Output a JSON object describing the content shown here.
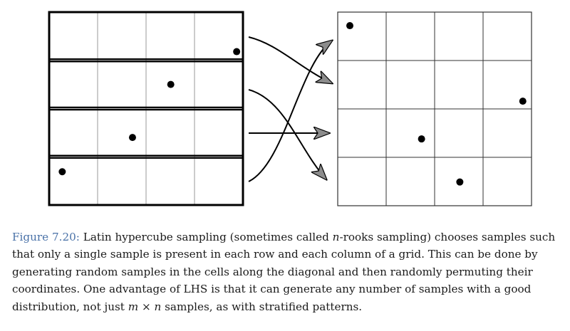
{
  "caption": {
    "label": "Figure 7.20:",
    "part1": " Latin hypercube sampling (sometimes called ",
    "math_n": "n",
    "part2": "-rooks sampling) chooses samples such that only a single sample is present in each row and each column of a grid. This can be done by generating random samples in the cells along the diagonal and then randomly permuting their coordinates. One advantage of LHS is that it can generate any number of samples with a good distribution, not just ",
    "math_m": "m",
    "times": " × ",
    "math_n2": "n",
    "part3": " samples, as with stratified patterns."
  },
  "diagram": {
    "colors": {
      "line": "#000000",
      "grid": "#999999",
      "arrowhead": "#8c8c8c",
      "dot": "#000000"
    },
    "left_grid": {
      "rows": 4,
      "cols": 4,
      "samples": [
        {
          "row": 0,
          "col": 3,
          "u": 0.87,
          "v": 0.82
        },
        {
          "row": 1,
          "col": 2,
          "u": 0.51,
          "v": 0.5
        },
        {
          "row": 2,
          "col": 1,
          "u": 0.72,
          "v": 0.6
        },
        {
          "row": 3,
          "col": 0,
          "u": 0.27,
          "v": 0.31
        }
      ]
    },
    "right_grid": {
      "rows": 4,
      "cols": 4,
      "samples": [
        {
          "row": 0,
          "col": 0,
          "u": 0.25,
          "v": 0.28
        },
        {
          "row": 1,
          "col": 3,
          "u": 0.82,
          "v": 0.84
        },
        {
          "row": 2,
          "col": 1,
          "u": 0.73,
          "v": 0.62
        },
        {
          "row": 3,
          "col": 2,
          "u": 0.52,
          "v": 0.51
        }
      ]
    },
    "row_permutation": [
      {
        "from_row": 0,
        "to_row": 1
      },
      {
        "from_row": 1,
        "to_row": 3
      },
      {
        "from_row": 2,
        "to_row": 2
      },
      {
        "from_row": 3,
        "to_row": 0
      }
    ]
  }
}
